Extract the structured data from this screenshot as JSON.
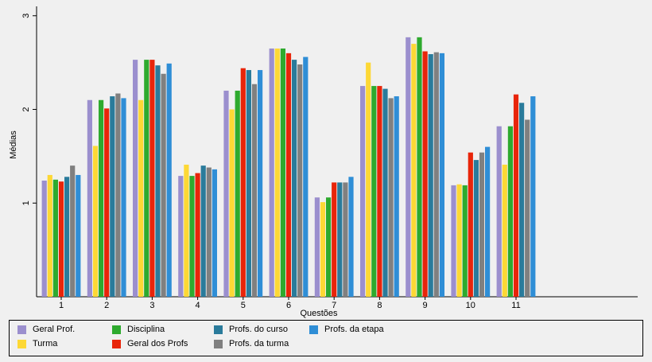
{
  "chart_data": {
    "type": "bar",
    "title": "",
    "xlabel": "Questões",
    "ylabel": "Médias",
    "ylim": [
      0,
      3.1
    ],
    "yticks": [
      "1",
      "2",
      "3"
    ],
    "categories": [
      "1",
      "2",
      "3",
      "4",
      "5",
      "6",
      "7",
      "8",
      "9",
      "10",
      "11"
    ],
    "grid": false,
    "legend_position": "bottom",
    "series": [
      {
        "name": "Geral Prof.",
        "color": "#9b8fce",
        "values": [
          1.24,
          2.1,
          2.53,
          1.29,
          2.2,
          2.65,
          1.06,
          2.25,
          2.77,
          1.19,
          1.82
        ]
      },
      {
        "name": "Turma",
        "color": "#fdd835",
        "values": [
          1.3,
          1.61,
          2.1,
          1.41,
          2.0,
          2.65,
          1.01,
          2.5,
          2.7,
          1.2,
          1.41
        ]
      },
      {
        "name": "Disciplina",
        "color": "#2eaa2e",
        "values": [
          1.25,
          2.1,
          2.53,
          1.29,
          2.2,
          2.65,
          1.06,
          2.25,
          2.77,
          1.19,
          1.82
        ]
      },
      {
        "name": "Geral dos Profs",
        "color": "#e8250a",
        "values": [
          1.23,
          2.01,
          2.53,
          1.32,
          2.44,
          2.6,
          1.22,
          2.25,
          2.62,
          1.54,
          2.16
        ]
      },
      {
        "name": "Profs. do curso",
        "color": "#2a7b9b",
        "values": [
          1.28,
          2.14,
          2.47,
          1.4,
          2.42,
          2.53,
          1.22,
          2.22,
          2.59,
          1.46,
          2.07
        ]
      },
      {
        "name": "Profs. da turma",
        "color": "#808080",
        "values": [
          1.4,
          2.17,
          2.38,
          1.38,
          2.27,
          2.48,
          1.22,
          2.12,
          2.61,
          1.54,
          1.89
        ]
      },
      {
        "name": "Profs. da etapa",
        "color": "#2f8ed6",
        "values": [
          1.3,
          2.12,
          2.49,
          1.36,
          2.42,
          2.56,
          1.28,
          2.14,
          2.6,
          1.6,
          2.14
        ]
      }
    ]
  }
}
